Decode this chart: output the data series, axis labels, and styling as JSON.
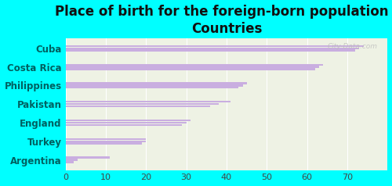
{
  "title": "Place of birth for the foreign-born population -\nCountries",
  "categories": [
    "Cuba",
    "Costa Rica",
    "Philippines",
    "Pakistan",
    "England",
    "Turkey",
    "Argentina"
  ],
  "values": [
    [
      74,
      73,
      72
    ],
    [
      64,
      63,
      62
    ],
    [
      45,
      44,
      43
    ],
    [
      41,
      38,
      36
    ],
    [
      31,
      30,
      29
    ],
    [
      20,
      20,
      19
    ],
    [
      11,
      3,
      2
    ]
  ],
  "bar_color": "#c9aee0",
  "background_color": "#00ffff",
  "plot_bg_color": "#eef2e4",
  "xlim": [
    0,
    80
  ],
  "xticks": [
    0,
    10,
    20,
    30,
    40,
    50,
    60,
    70
  ],
  "title_fontsize": 12,
  "label_fontsize": 8.5,
  "tick_fontsize": 8,
  "label_color": "#006060",
  "watermark": "City-Data.com"
}
